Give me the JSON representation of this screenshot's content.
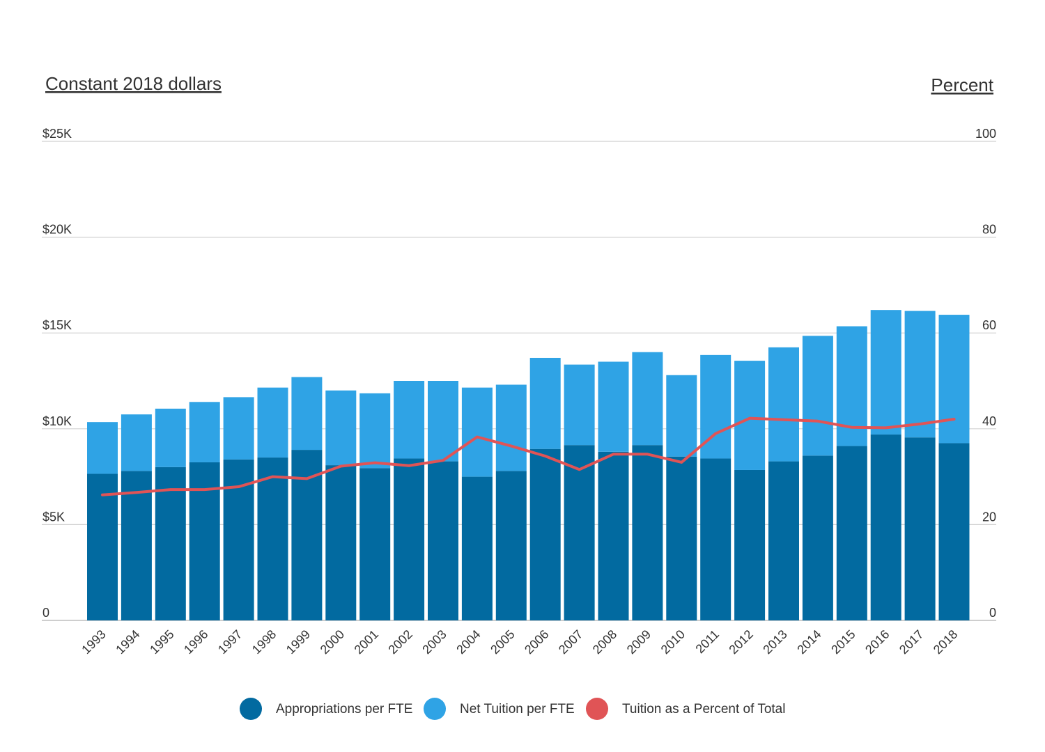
{
  "chart_data": {
    "type": "bar",
    "stacked": true,
    "y_axis_left_title": "Constant 2018 dollars",
    "y_axis_right_title": "Percent",
    "ylim_left": [
      0,
      25000
    ],
    "ylim_right": [
      0,
      100
    ],
    "y_ticks_left": [
      "0",
      "$5K",
      "$10K",
      "$15K",
      "$20K",
      "$25K"
    ],
    "y_ticks_left_values": [
      0,
      5000,
      10000,
      15000,
      20000,
      25000
    ],
    "y_ticks_right": [
      "0",
      "20",
      "40",
      "60",
      "80",
      "100"
    ],
    "y_ticks_right_values": [
      0,
      20,
      40,
      60,
      80,
      100
    ],
    "grid": true,
    "legend_position": "bottom",
    "categories": [
      "1993",
      "1994",
      "1995",
      "1996",
      "1997",
      "1998",
      "1999",
      "2000",
      "2001",
      "2002",
      "2003",
      "2004",
      "2005",
      "2006",
      "2007",
      "2008",
      "2009",
      "2010",
      "2011",
      "2012",
      "2013",
      "2014",
      "2015",
      "2016",
      "2017",
      "2018"
    ],
    "series": [
      {
        "name": "Appropriations per FTE",
        "type": "bar",
        "axis": "left",
        "color": "#026aa0",
        "values": [
          7650,
          7800,
          8000,
          8250,
          8400,
          8500,
          8900,
          8100,
          7950,
          8450,
          8300,
          7500,
          7800,
          8950,
          9150,
          8800,
          9150,
          8550,
          8450,
          7850,
          8300,
          8600,
          9100,
          9700,
          9550,
          9250
        ]
      },
      {
        "name": "Net Tuition per FTE",
        "type": "bar",
        "axis": "left",
        "color": "#2fa3e5",
        "values": [
          2700,
          2950,
          3050,
          3150,
          3250,
          3650,
          3800,
          3900,
          3900,
          4050,
          4200,
          4650,
          4500,
          4750,
          4200,
          4700,
          4850,
          4250,
          5400,
          5700,
          5950,
          6250,
          6250,
          6500,
          6600,
          6700
        ]
      },
      {
        "name": "Tuition as a Percent of Total",
        "type": "line",
        "axis": "right",
        "color": "#e05456",
        "values": [
          26.2,
          26.7,
          27.3,
          27.3,
          27.9,
          30.0,
          29.6,
          32.2,
          32.9,
          32.3,
          33.4,
          38.3,
          36.4,
          34.3,
          31.5,
          34.7,
          34.7,
          33.0,
          39.0,
          42.2,
          41.9,
          41.6,
          40.3,
          40.2,
          41.0,
          42.0
        ]
      }
    ]
  }
}
